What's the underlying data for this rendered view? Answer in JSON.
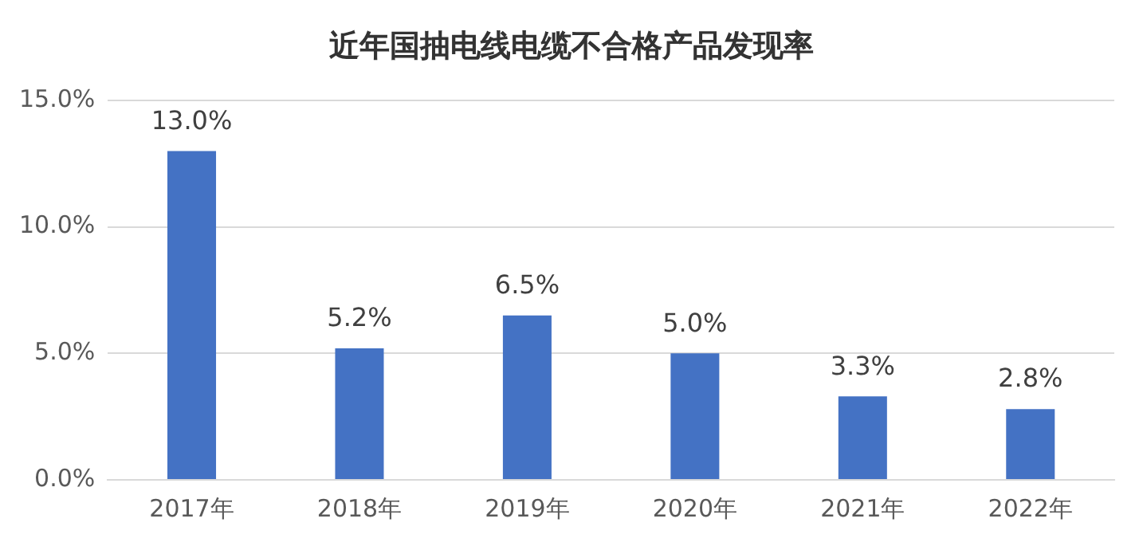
{
  "chart_data": {
    "type": "bar",
    "title": "近年国抽电线电缆不合格产品发现率",
    "categories": [
      "2017年",
      "2018年",
      "2019年",
      "2020年",
      "2021年",
      "2022年"
    ],
    "values": [
      13.0,
      5.2,
      6.5,
      5.0,
      3.3,
      2.8
    ],
    "value_labels": [
      "13.0%",
      "5.2%",
      "6.5%",
      "5.0%",
      "3.3%",
      "2.8%"
    ],
    "color": "#4472c4",
    "ylim": [
      0,
      15
    ],
    "yticks": [
      {
        "value": 0,
        "label": "0.0%"
      },
      {
        "value": 5,
        "label": "5.0%"
      },
      {
        "value": 10,
        "label": "10.0%"
      },
      {
        "value": 15,
        "label": "15.0%"
      }
    ],
    "grid": "y",
    "legend": false
  }
}
